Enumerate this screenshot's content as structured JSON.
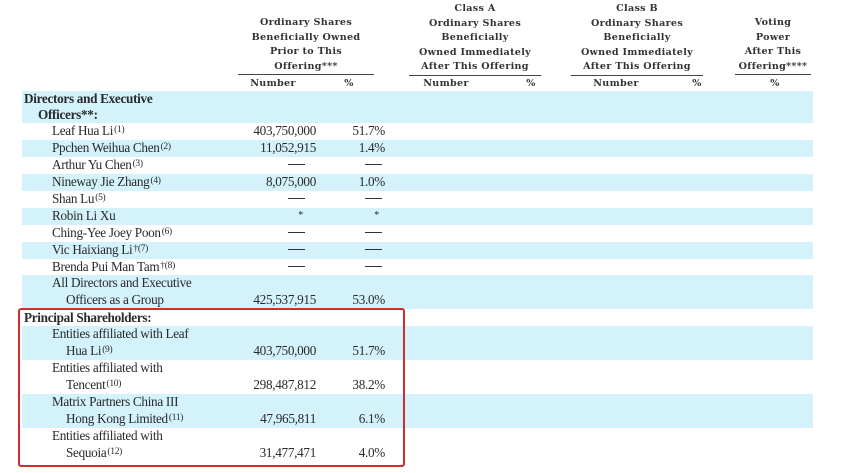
{
  "header": {
    "groups": [
      {
        "lines": [
          "Ordinary Shares",
          "Beneficially Owned",
          "Prior to This",
          "Offering***"
        ],
        "sub": [
          "Number",
          "%"
        ]
      },
      {
        "lines": [
          "Class A",
          "Ordinary Shares",
          "Beneficially",
          "Owned Immediately",
          "After This Offering"
        ],
        "sub": [
          "Number",
          "%"
        ]
      },
      {
        "lines": [
          "Class B",
          "Ordinary Shares",
          "Beneficially",
          "Owned Immediately",
          "After This Offering"
        ],
        "sub": [
          "Number",
          "%"
        ]
      },
      {
        "lines": [
          "Voting",
          "Power",
          "After This",
          "Offering****"
        ],
        "sub": [
          "%"
        ]
      }
    ]
  },
  "sections": {
    "directors": [
      "Directors and Executive",
      "Officers**:"
    ],
    "principal": [
      "Principal Shareholders:"
    ]
  },
  "rows": [
    {
      "name": [
        "Leaf Hua Li"
      ],
      "fn": "(1)",
      "number": "403,750,000",
      "pct": "51.7%"
    },
    {
      "name": [
        "Ppchen Weihua Chen"
      ],
      "fn": "(2)",
      "number": "11,052,915",
      "pct": "1.4%"
    },
    {
      "name": [
        "Arthur Yu Chen"
      ],
      "fn": "(3)",
      "number": "—",
      "pct": "—"
    },
    {
      "name": [
        "Nineway Jie Zhang"
      ],
      "fn": "(4)",
      "number": "8,075,000",
      "pct": "1.0%"
    },
    {
      "name": [
        "Shan Lu"
      ],
      "fn": "(5)",
      "number": "—",
      "pct": "—"
    },
    {
      "name": [
        "Robin Li Xu"
      ],
      "fn": "",
      "number": "*",
      "pct": "*"
    },
    {
      "name": [
        "Ching-Yee Joey Poon"
      ],
      "fn": "(6)",
      "number": "—",
      "pct": "—"
    },
    {
      "name": [
        "Vic Haixiang Li"
      ],
      "fn": "†(7)",
      "number": "—",
      "pct": "—"
    },
    {
      "name": [
        "Brenda Pui Man Tam"
      ],
      "fn": "†(8)",
      "number": "—",
      "pct": "—"
    },
    {
      "name": [
        "All Directors and Executive",
        "Officers as a Group"
      ],
      "fn": "",
      "number": "425,537,915",
      "pct": "53.0%"
    },
    {
      "name": [
        "Entities affiliated with Leaf",
        "Hua Li"
      ],
      "fn": "(9)",
      "number": "403,750,000",
      "pct": "51.7%"
    },
    {
      "name": [
        "Entities affiliated with",
        "Tencent"
      ],
      "fn": "(10)",
      "number": "298,487,812",
      "pct": "38.2%"
    },
    {
      "name": [
        "Matrix Partners China III",
        "Hong Kong Limited"
      ],
      "fn": "(11)",
      "number": "47,965,811",
      "pct": "6.1%"
    },
    {
      "name": [
        "Entities affiliated with",
        "Sequoia"
      ],
      "fn": "(12)",
      "number": "31,477,471",
      "pct": "4.0%"
    }
  ],
  "highlight_color": "#d8292b",
  "shade_color": "#d3f2fc"
}
